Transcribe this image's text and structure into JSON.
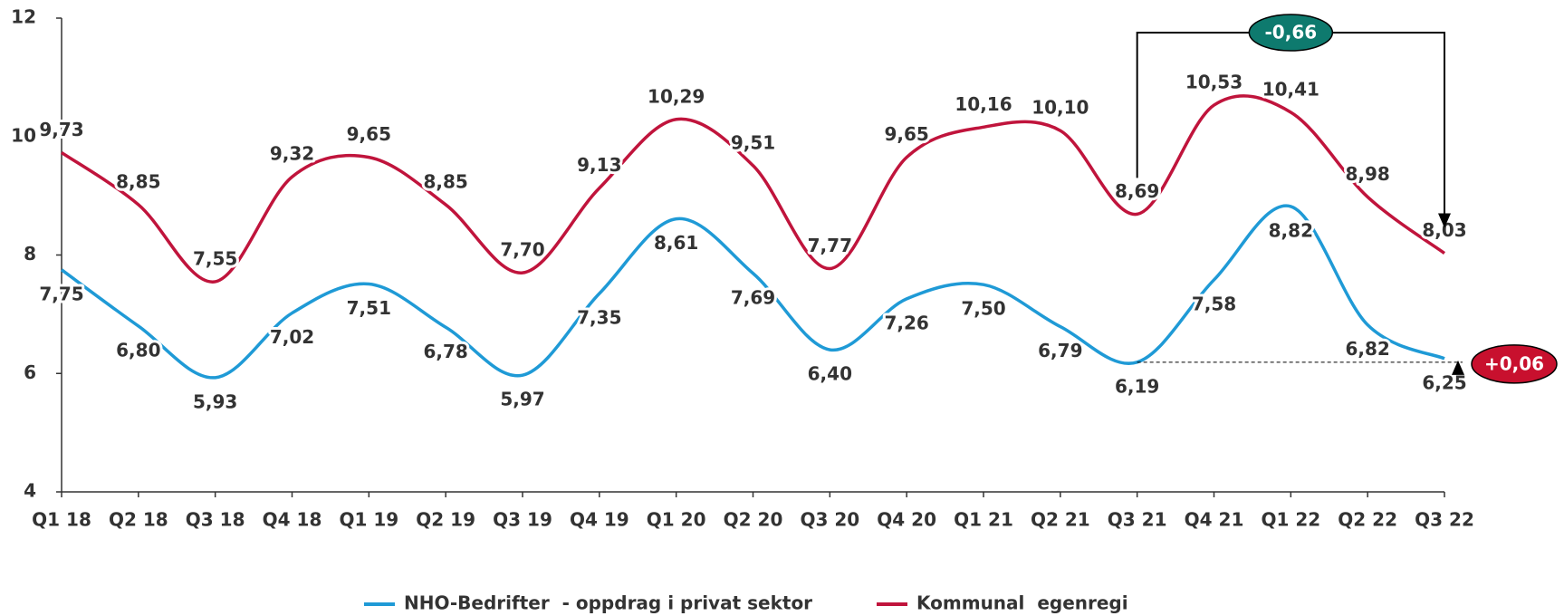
{
  "chart_data": {
    "type": "line",
    "categories": [
      "Q1 18",
      "Q2 18",
      "Q3 18",
      "Q4 18",
      "Q1 19",
      "Q2 19",
      "Q3 19",
      "Q4 19",
      "Q1 20",
      "Q2 20",
      "Q3 20",
      "Q4 20",
      "Q1 21",
      "Q2 21",
      "Q3 21",
      "Q4 21",
      "Q1 22",
      "Q2 22",
      "Q3 22"
    ],
    "series": [
      {
        "name": "NHO-Bedrifter  - oppdrag i privat sektor",
        "color": "#1f9ad6",
        "values": [
          7.75,
          6.8,
          5.93,
          7.02,
          7.51,
          6.78,
          5.97,
          7.35,
          8.61,
          7.69,
          6.4,
          7.26,
          7.5,
          6.79,
          6.19,
          7.58,
          8.82,
          6.82,
          6.25
        ],
        "value_labels": [
          "7,75",
          "6,80",
          "5,93",
          "7,02",
          "7,51",
          "6,78",
          "5,97",
          "7,35",
          "8,61",
          "7,69",
          "6,40",
          "7,26",
          "7,50",
          "6,79",
          "6,19",
          "7,58",
          "8,82",
          "6,82",
          "6,25"
        ]
      },
      {
        "name": "Kommunal  egenregi",
        "color": "#c0143c",
        "values": [
          9.73,
          8.85,
          7.55,
          9.32,
          9.65,
          8.85,
          7.7,
          9.13,
          10.29,
          9.51,
          7.77,
          9.65,
          10.16,
          10.1,
          8.69,
          10.53,
          10.41,
          8.98,
          8.03
        ],
        "value_labels": [
          "9,73",
          "8,85",
          "7,55",
          "9,32",
          "9,65",
          "8,85",
          "7,70",
          "9,13",
          "10,29",
          "9,51",
          "7,77",
          "9,65",
          "10,16",
          "10,10",
          "8,69",
          "10,53",
          "10,41",
          "8,98",
          "8,03"
        ]
      }
    ],
    "ylim": [
      4,
      12
    ],
    "yticks": [
      4,
      6,
      8,
      10,
      12
    ],
    "annotations": [
      {
        "text": "-0,66",
        "color": "#0e7a6e"
      },
      {
        "text": "+0,06",
        "color": "#c8102e"
      }
    ]
  }
}
